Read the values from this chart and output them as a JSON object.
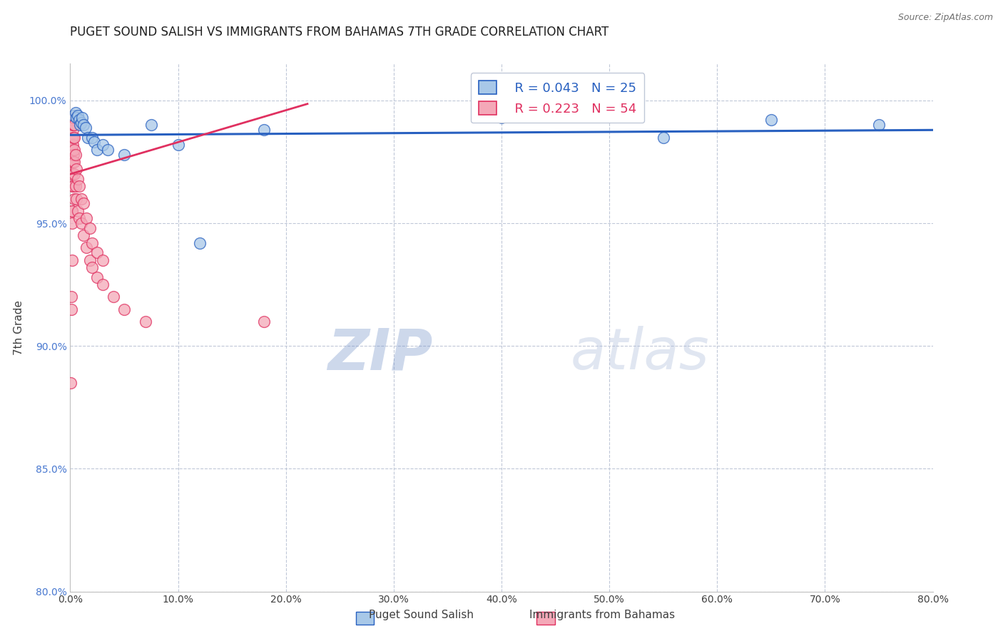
{
  "title": "PUGET SOUND SALISH VS IMMIGRANTS FROM BAHAMAS 7TH GRADE CORRELATION CHART",
  "source": "Source: ZipAtlas.com",
  "xlabel": "",
  "ylabel": "7th Grade",
  "xlim": [
    0.0,
    80.0
  ],
  "ylim": [
    80.0,
    101.5
  ],
  "xticks": [
    0.0,
    10.0,
    20.0,
    30.0,
    40.0,
    50.0,
    60.0,
    70.0,
    80.0
  ],
  "yticks": [
    80.0,
    85.0,
    90.0,
    95.0,
    100.0
  ],
  "blue_label": "Puget Sound Salish",
  "pink_label": "Immigrants from Bahamas",
  "blue_R": "R = 0.043",
  "blue_N": "N = 25",
  "pink_R": "R = 0.223",
  "pink_N": "N = 54",
  "blue_color": "#a8c8e8",
  "pink_color": "#f4a8b8",
  "blue_line_color": "#2860c0",
  "pink_line_color": "#e03060",
  "watermark_zip": "ZIP",
  "watermark_atlas": "atlas",
  "blue_scatter": [
    [
      0.3,
      99.4
    ],
    [
      0.5,
      99.5
    ],
    [
      0.6,
      99.3
    ],
    [
      0.7,
      99.4
    ],
    [
      0.8,
      99.2
    ],
    [
      0.9,
      99.0
    ],
    [
      1.0,
      99.1
    ],
    [
      1.1,
      99.3
    ],
    [
      1.2,
      99.0
    ],
    [
      1.4,
      98.9
    ],
    [
      1.6,
      98.5
    ],
    [
      2.0,
      98.5
    ],
    [
      2.2,
      98.3
    ],
    [
      2.5,
      98.0
    ],
    [
      3.0,
      98.2
    ],
    [
      3.5,
      98.0
    ],
    [
      5.0,
      97.8
    ],
    [
      7.5,
      99.0
    ],
    [
      10.0,
      98.2
    ],
    [
      12.0,
      94.2
    ],
    [
      18.0,
      98.8
    ],
    [
      40.0,
      99.3
    ],
    [
      55.0,
      98.5
    ],
    [
      65.0,
      99.2
    ],
    [
      75.0,
      99.0
    ]
  ],
  "pink_scatter": [
    [
      0.05,
      88.5
    ],
    [
      0.1,
      91.5
    ],
    [
      0.12,
      92.0
    ],
    [
      0.15,
      93.5
    ],
    [
      0.15,
      95.0
    ],
    [
      0.15,
      95.5
    ],
    [
      0.15,
      96.5
    ],
    [
      0.2,
      95.5
    ],
    [
      0.2,
      97.0
    ],
    [
      0.2,
      97.5
    ],
    [
      0.2,
      98.0
    ],
    [
      0.2,
      98.5
    ],
    [
      0.25,
      97.5
    ],
    [
      0.25,
      98.2
    ],
    [
      0.25,
      98.8
    ],
    [
      0.25,
      99.0
    ],
    [
      0.25,
      99.2
    ],
    [
      0.3,
      96.5
    ],
    [
      0.3,
      97.8
    ],
    [
      0.3,
      98.5
    ],
    [
      0.3,
      99.0
    ],
    [
      0.3,
      99.3
    ],
    [
      0.35,
      97.0
    ],
    [
      0.35,
      98.0
    ],
    [
      0.35,
      99.0
    ],
    [
      0.4,
      96.0
    ],
    [
      0.4,
      97.5
    ],
    [
      0.4,
      98.5
    ],
    [
      0.5,
      96.5
    ],
    [
      0.5,
      97.8
    ],
    [
      0.6,
      96.0
    ],
    [
      0.6,
      97.2
    ],
    [
      0.7,
      95.5
    ],
    [
      0.7,
      96.8
    ],
    [
      0.8,
      95.2
    ],
    [
      0.8,
      96.5
    ],
    [
      1.0,
      95.0
    ],
    [
      1.0,
      96.0
    ],
    [
      1.2,
      94.5
    ],
    [
      1.2,
      95.8
    ],
    [
      1.5,
      94.0
    ],
    [
      1.5,
      95.2
    ],
    [
      1.8,
      93.5
    ],
    [
      1.8,
      94.8
    ],
    [
      2.0,
      93.2
    ],
    [
      2.0,
      94.2
    ],
    [
      2.5,
      92.8
    ],
    [
      2.5,
      93.8
    ],
    [
      3.0,
      92.5
    ],
    [
      3.0,
      93.5
    ],
    [
      4.0,
      92.0
    ],
    [
      5.0,
      91.5
    ],
    [
      7.0,
      91.0
    ],
    [
      18.0,
      91.0
    ]
  ]
}
